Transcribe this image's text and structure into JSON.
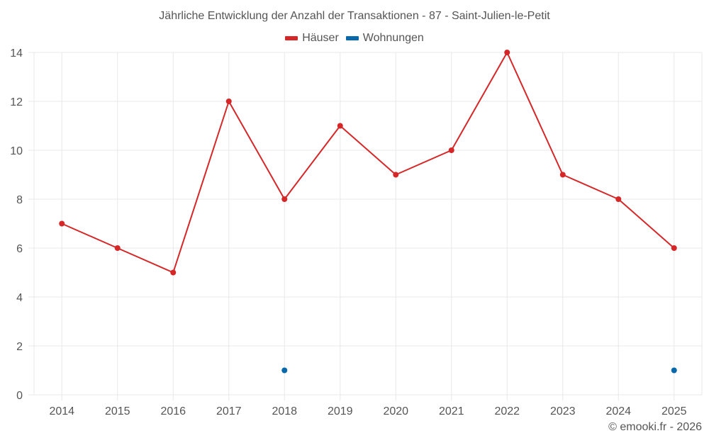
{
  "title": "Jährliche Entwicklung der Anzahl der Transaktionen - 87 - Saint-Julien-le-Petit",
  "legend": [
    {
      "label": "Häuser",
      "color": "#d62728"
    },
    {
      "label": "Wohnungen",
      "color": "#0868ac"
    }
  ],
  "credit": "© emooki.fr - 2026",
  "colors": {
    "grid": "#e8e8e8",
    "text": "#555555",
    "haeuser": "#d62728",
    "wohnungen": "#0868ac"
  },
  "chart_data": {
    "type": "line",
    "title": "Jährliche Entwicklung der Anzahl der Transaktionen - 87 - Saint-Julien-le-Petit",
    "xlabel": "",
    "ylabel": "",
    "categories": [
      "2014",
      "2015",
      "2016",
      "2017",
      "2018",
      "2019",
      "2020",
      "2021",
      "2022",
      "2023",
      "2024",
      "2025"
    ],
    "series": [
      {
        "name": "Häuser",
        "color": "#d62728",
        "values": [
          7,
          6,
          5,
          12,
          8,
          11,
          9,
          10,
          14,
          9,
          8,
          6
        ]
      },
      {
        "name": "Wohnungen",
        "color": "#0868ac",
        "values": [
          null,
          null,
          null,
          null,
          1,
          null,
          null,
          null,
          null,
          null,
          null,
          1
        ]
      }
    ],
    "yticks": [
      0,
      2,
      4,
      6,
      8,
      10,
      12,
      14
    ],
    "ylim": [
      0,
      14
    ],
    "grid": true,
    "legend_position": "top"
  }
}
